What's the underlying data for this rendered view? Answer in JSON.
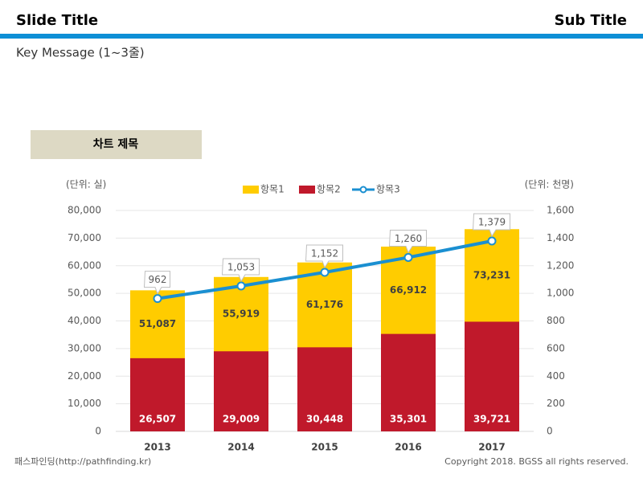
{
  "header": {
    "title": "Slide Title",
    "subtitle": "Sub Title",
    "key_message": "Key Message  (1~3줄)"
  },
  "footer": {
    "left": "패스파인딩(http://pathfinding.kr)",
    "right": "Copyright 2018. BGSS all rights reserved."
  },
  "chart_data": {
    "type": "bar",
    "title": "차트 제목",
    "y_label": "(단위: 실)",
    "y2_label": "(단위: 천명)",
    "categories": [
      "2013",
      "2014",
      "2015",
      "2016",
      "2017"
    ],
    "series": [
      {
        "name": "항목1",
        "color": "#ffcc00",
        "values": [
          51087,
          55919,
          61176,
          66912,
          73231
        ],
        "value_labels": [
          "51,087",
          "55,919",
          "61,176",
          "66,912",
          "73,231"
        ]
      },
      {
        "name": "항목2",
        "color": "#c0192b",
        "values": [
          26507,
          29009,
          30448,
          35301,
          39721
        ],
        "value_labels": [
          "26,507",
          "29,009",
          "30,448",
          "35,301",
          "39,721"
        ]
      },
      {
        "name": "항목3",
        "color": "#1a8fd1",
        "type": "line",
        "axis": "y2",
        "values": [
          962,
          1053,
          1152,
          1260,
          1379
        ],
        "value_labels": [
          "962",
          "1,053",
          "1,152",
          "1,260",
          "1,379"
        ]
      }
    ],
    "ylim": [
      0,
      80000
    ],
    "yticks": [
      0,
      {
        "value": 10000,
        "label": "10,000"
      },
      {
        "value": 20000,
        "label": "20,000"
      },
      {
        "value": 30000,
        "label": "30,000"
      },
      {
        "value": 40000,
        "label": "40,000"
      },
      {
        "value": 50000,
        "label": "50,000"
      },
      {
        "value": 60000,
        "label": "60,000"
      },
      {
        "value": 70000,
        "label": "70,000"
      },
      {
        "value": 80000,
        "label": "80,000"
      }
    ],
    "y2lim": [
      0,
      1600
    ],
    "y2ticks": [
      0,
      200,
      400,
      600,
      800,
      {
        "value": 1000,
        "label": "1,000"
      },
      {
        "value": 1200,
        "label": "1,200"
      },
      {
        "value": 1400,
        "label": "1,400"
      },
      {
        "value": 1600,
        "label": "1,600"
      }
    ],
    "legend": "top",
    "grid": true
  }
}
